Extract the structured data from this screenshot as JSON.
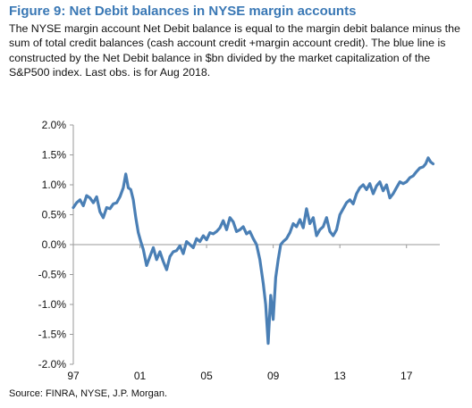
{
  "figure": {
    "title": "Figure 9: Net Debit balances in NYSE margin accounts",
    "description": "The NYSE margin account Net Debit balance is equal to the margin debit balance minus the sum of total credit balances (cash account credit +margin account credit). The blue line is constructed by the Net Debit balance in $bn divided by the market capitalization of the S&P500 index. Last obs. is for Aug 2018.",
    "source": "Source: FINRA, NYSE, J.P. Morgan."
  },
  "colors": {
    "line": "#4a7fb5",
    "title": "#3a78b5",
    "axis": "#9a9a9a"
  },
  "chart_data": {
    "type": "line",
    "title": "",
    "xlabel": "",
    "ylabel": "",
    "xlim": [
      1997.0,
      2019.0
    ],
    "ylim": [
      -2.0,
      2.0
    ],
    "grid": false,
    "legend": "none",
    "x_ticks": [
      1997,
      2001,
      2005,
      2009,
      2013,
      2017
    ],
    "x_tick_labels": [
      "97",
      "01",
      "05",
      "09",
      "13",
      "17"
    ],
    "y_ticks": [
      2.0,
      1.5,
      1.0,
      0.5,
      0.0,
      -0.5,
      -1.0,
      -1.5,
      -2.0
    ],
    "y_tick_labels": [
      "2.0%",
      "1.5%",
      "1.0%",
      "0.5%",
      "0.0%",
      "-0.5%",
      "-1.0%",
      "-1.5%",
      "-2.0%"
    ],
    "series": [
      {
        "x": [
          1997.0,
          1997.2,
          1997.4,
          1997.6,
          1997.8,
          1998.0,
          1998.2,
          1998.4,
          1998.6,
          1998.8,
          1999.0,
          1999.2,
          1999.4,
          1999.6,
          1999.8,
          2000.0,
          2000.15,
          2000.3,
          2000.45,
          2000.6,
          2000.75,
          2000.9,
          2001.05,
          2001.2,
          2001.4,
          2001.6,
          2001.8,
          2002.0,
          2002.2,
          2002.4,
          2002.6,
          2002.8,
          2003.0,
          2003.2,
          2003.4,
          2003.6,
          2003.8,
          2004.0,
          2004.2,
          2004.4,
          2004.6,
          2004.8,
          2005.0,
          2005.2,
          2005.4,
          2005.6,
          2005.8,
          2006.0,
          2006.2,
          2006.4,
          2006.6,
          2006.8,
          2007.0,
          2007.2,
          2007.4,
          2007.6,
          2007.8,
          2008.0,
          2008.2,
          2008.4,
          2008.55,
          2008.7,
          2008.85,
          2009.0,
          2009.15,
          2009.3,
          2009.45,
          2009.6,
          2009.8,
          2010.0,
          2010.2,
          2010.4,
          2010.6,
          2010.8,
          2011.0,
          2011.2,
          2011.4,
          2011.6,
          2011.8,
          2012.0,
          2012.2,
          2012.4,
          2012.6,
          2012.8,
          2013.0,
          2013.2,
          2013.4,
          2013.6,
          2013.8,
          2014.0,
          2014.2,
          2014.4,
          2014.6,
          2014.8,
          2015.0,
          2015.2,
          2015.4,
          2015.6,
          2015.8,
          2016.0,
          2016.2,
          2016.4,
          2016.6,
          2016.8,
          2017.0,
          2017.2,
          2017.4,
          2017.6,
          2017.8,
          2018.0,
          2018.15,
          2018.3,
          2018.45,
          2018.6
        ],
        "values": [
          0.62,
          0.7,
          0.75,
          0.65,
          0.82,
          0.78,
          0.7,
          0.8,
          0.55,
          0.45,
          0.62,
          0.6,
          0.68,
          0.7,
          0.8,
          0.95,
          1.18,
          0.95,
          0.92,
          0.75,
          0.45,
          0.2,
          0.05,
          -0.08,
          -0.35,
          -0.2,
          -0.05,
          -0.25,
          -0.12,
          -0.28,
          -0.42,
          -0.2,
          -0.12,
          -0.1,
          -0.02,
          -0.15,
          0.05,
          0.0,
          -0.05,
          0.1,
          0.05,
          0.15,
          0.08,
          0.2,
          0.18,
          0.22,
          0.28,
          0.4,
          0.25,
          0.45,
          0.38,
          0.22,
          0.25,
          0.3,
          0.18,
          0.22,
          0.1,
          0.0,
          -0.25,
          -0.65,
          -1.0,
          -1.65,
          -0.85,
          -1.25,
          -0.55,
          -0.25,
          0.0,
          0.05,
          0.1,
          0.2,
          0.35,
          0.3,
          0.42,
          0.28,
          0.6,
          0.35,
          0.45,
          0.15,
          0.25,
          0.3,
          0.45,
          0.22,
          0.15,
          0.25,
          0.5,
          0.6,
          0.7,
          0.75,
          0.68,
          0.85,
          0.95,
          1.0,
          0.92,
          1.02,
          0.85,
          0.98,
          1.05,
          0.9,
          1.0,
          0.78,
          0.85,
          0.95,
          1.05,
          1.02,
          1.05,
          1.12,
          1.15,
          1.22,
          1.28,
          1.3,
          1.35,
          1.45,
          1.38,
          1.35
        ]
      }
    ]
  }
}
